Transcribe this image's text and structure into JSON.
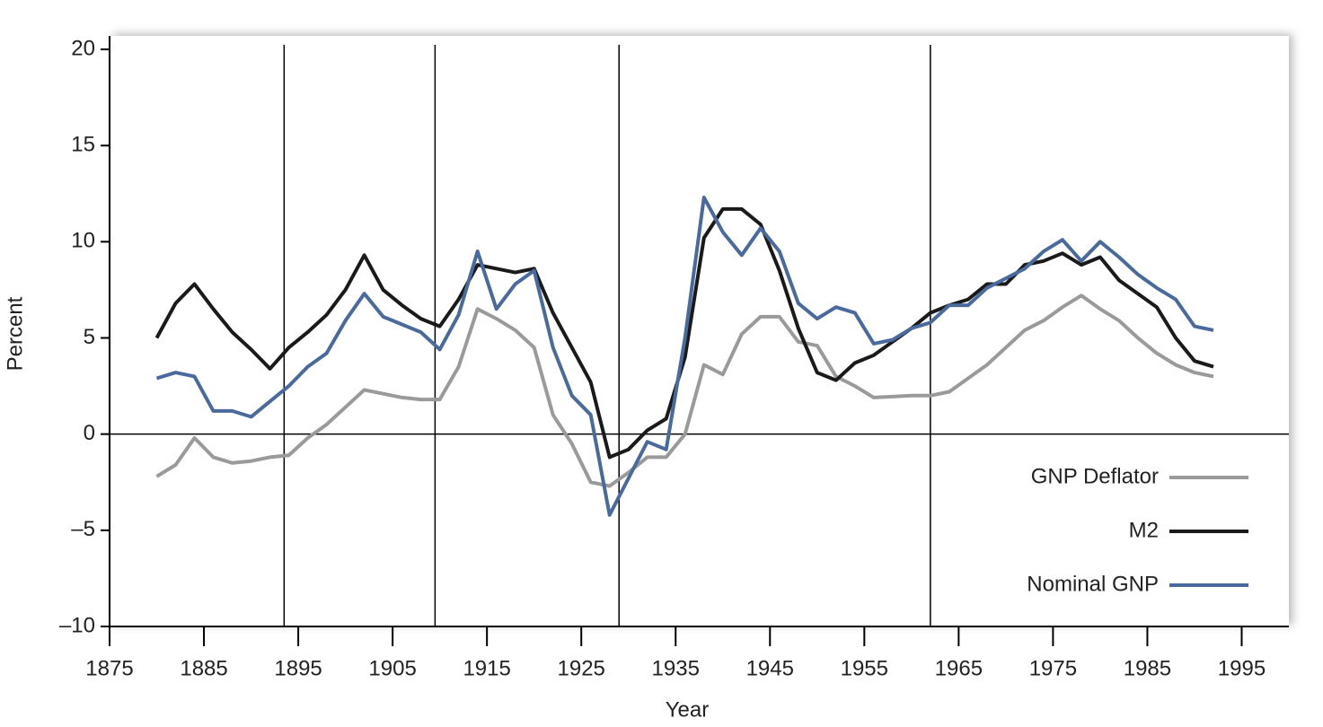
{
  "chart_data": {
    "type": "line",
    "x_label": "Year",
    "y_label": "Percent",
    "x": [
      1880,
      1882,
      1884,
      1886,
      1888,
      1890,
      1892,
      1894,
      1896,
      1898,
      1900,
      1902,
      1904,
      1906,
      1908,
      1910,
      1912,
      1914,
      1916,
      1918,
      1920,
      1922,
      1924,
      1926,
      1928,
      1930,
      1932,
      1934,
      1936,
      1938,
      1940,
      1942,
      1944,
      1946,
      1948,
      1950,
      1952,
      1954,
      1956,
      1958,
      1960,
      1962,
      1964,
      1966,
      1968,
      1970,
      1972,
      1974,
      1976,
      1978,
      1980,
      1982,
      1984,
      1986,
      1988,
      1990,
      1992
    ],
    "series": [
      {
        "name": "GNP Deflator",
        "color": "#9a9a9a",
        "values": [
          -2.2,
          -1.6,
          -0.2,
          -1.2,
          -1.5,
          -1.4,
          -1.2,
          -1.1,
          -0.2,
          0.5,
          1.4,
          2.3,
          2.1,
          1.9,
          1.8,
          1.8,
          3.5,
          6.5,
          6.0,
          5.4,
          4.5,
          1.0,
          -0.5,
          -2.5,
          -2.7,
          -2.0,
          -1.2,
          -1.2,
          0.0,
          3.6,
          3.1,
          5.2,
          6.1,
          6.1,
          4.8,
          4.6,
          3.0,
          2.5,
          1.9,
          1.95,
          2.0,
          2.0,
          2.2,
          2.9,
          3.6,
          4.5,
          5.4,
          5.9,
          6.6,
          7.2,
          6.5,
          5.9,
          5.0,
          4.2,
          3.6,
          3.2,
          3.0
        ]
      },
      {
        "name": "M2",
        "color": "#1a1a1a",
        "values": [
          5.0,
          6.8,
          7.8,
          6.5,
          5.3,
          4.4,
          3.4,
          4.5,
          5.3,
          6.2,
          7.5,
          9.3,
          7.5,
          6.7,
          6.0,
          5.6,
          7.0,
          8.8,
          8.6,
          8.4,
          8.6,
          6.3,
          4.5,
          2.7,
          -1.2,
          -0.8,
          0.2,
          0.8,
          4.0,
          10.2,
          11.7,
          11.7,
          10.9,
          8.5,
          5.5,
          3.2,
          2.8,
          3.7,
          4.1,
          4.8,
          5.5,
          6.3,
          6.7,
          7.0,
          7.8,
          7.8,
          8.8,
          9.0,
          9.4,
          8.8,
          9.2,
          8.0,
          7.3,
          6.6,
          5.0,
          3.8,
          3.5
        ]
      },
      {
        "name": "Nominal GNP",
        "color": "#4a6a9e",
        "values": [
          2.9,
          3.2,
          3.0,
          1.2,
          1.2,
          0.9,
          1.7,
          2.5,
          3.5,
          4.2,
          5.9,
          7.3,
          6.1,
          5.7,
          5.3,
          4.4,
          6.2,
          9.5,
          6.5,
          7.8,
          8.5,
          4.5,
          2.0,
          1.0,
          -4.2,
          -2.3,
          -0.4,
          -0.8,
          5.0,
          12.3,
          10.5,
          9.3,
          10.7,
          9.5,
          6.8,
          6.0,
          6.6,
          6.3,
          4.7,
          4.9,
          5.5,
          5.8,
          6.7,
          6.7,
          7.6,
          8.1,
          8.6,
          9.5,
          10.1,
          9.0,
          10.0,
          9.2,
          8.3,
          7.6,
          7.0,
          5.6,
          5.4
        ]
      }
    ],
    "xlim": [
      1875,
      2000
    ],
    "xticks": [
      1875,
      1885,
      1895,
      1905,
      1915,
      1925,
      1935,
      1945,
      1955,
      1965,
      1975,
      1985,
      1995
    ],
    "ylim": [
      -10,
      20
    ],
    "yticks": [
      {
        "value": -10,
        "label": "–10"
      },
      {
        "value": -5,
        "label": "–5"
      },
      0,
      5,
      10,
      15,
      20
    ],
    "reference_x": [
      1893.5,
      1909.5,
      1929,
      1962
    ],
    "reference_y": 0,
    "legend": "lower right"
  }
}
